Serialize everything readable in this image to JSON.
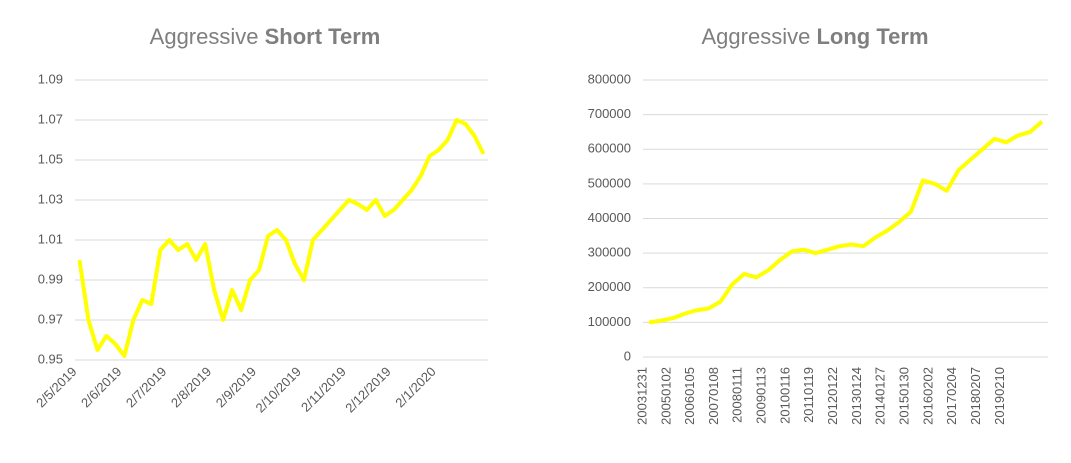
{
  "chart_data": [
    {
      "type": "line",
      "title": {
        "text": "Aggressive",
        "emphasis": "Short Term"
      },
      "categories": [
        "2/5/2019",
        null,
        null,
        null,
        null,
        "2/6/2019",
        null,
        null,
        null,
        null,
        "2/7/2019",
        null,
        null,
        null,
        null,
        "2/8/2019",
        null,
        null,
        null,
        null,
        "2/9/2019",
        null,
        null,
        null,
        null,
        "2/10/2019",
        null,
        null,
        null,
        null,
        "2/11/2019",
        null,
        null,
        null,
        null,
        "2/12/2019",
        null,
        null,
        null,
        null,
        "2/1/2020",
        null,
        null,
        null,
        null,
        null
      ],
      "values": [
        1.0,
        0.97,
        0.955,
        0.962,
        0.958,
        0.952,
        0.97,
        0.98,
        0.978,
        1.005,
        1.01,
        1.005,
        1.008,
        1.0,
        1.008,
        0.985,
        0.97,
        0.985,
        0.975,
        0.99,
        0.995,
        1.012,
        1.015,
        1.01,
        0.998,
        0.99,
        1.01,
        1.015,
        1.02,
        1.025,
        1.03,
        1.028,
        1.025,
        1.03,
        1.022,
        1.025,
        1.03,
        1.035,
        1.042,
        1.052,
        1.055,
        1.06,
        1.07,
        1.068,
        1.062,
        1.053
      ],
      "color": "#ffff00",
      "ylim": [
        0.95,
        1.09
      ],
      "yticks": [
        0.95,
        0.97,
        0.99,
        1.01,
        1.03,
        1.05,
        1.07,
        1.09
      ],
      "grid": true
    },
    {
      "type": "line",
      "title": {
        "text": "Aggressive",
        "emphasis": "Long Term"
      },
      "categories": [
        "20031231",
        null,
        "20050102",
        null,
        "20060105",
        null,
        "20070108",
        null,
        "20080111",
        null,
        "20090113",
        null,
        "20100116",
        null,
        "20110119",
        null,
        "20120122",
        null,
        "20130124",
        null,
        "20140127",
        null,
        "20150130",
        null,
        "20160202",
        null,
        "20170204",
        null,
        "20180207",
        null,
        "20190210",
        null,
        null,
        null
      ],
      "values": [
        100000,
        105000,
        112000,
        125000,
        135000,
        140000,
        160000,
        210000,
        240000,
        230000,
        250000,
        280000,
        305000,
        310000,
        300000,
        310000,
        320000,
        325000,
        320000,
        345000,
        365000,
        390000,
        420000,
        510000,
        500000,
        480000,
        540000,
        570000,
        600000,
        630000,
        620000,
        640000,
        650000,
        680000
      ],
      "color": "#ffff00",
      "ylim": [
        0,
        800000
      ],
      "yticks": [
        0,
        100000,
        200000,
        300000,
        400000,
        500000,
        600000,
        700000,
        800000
      ],
      "grid": true
    }
  ]
}
